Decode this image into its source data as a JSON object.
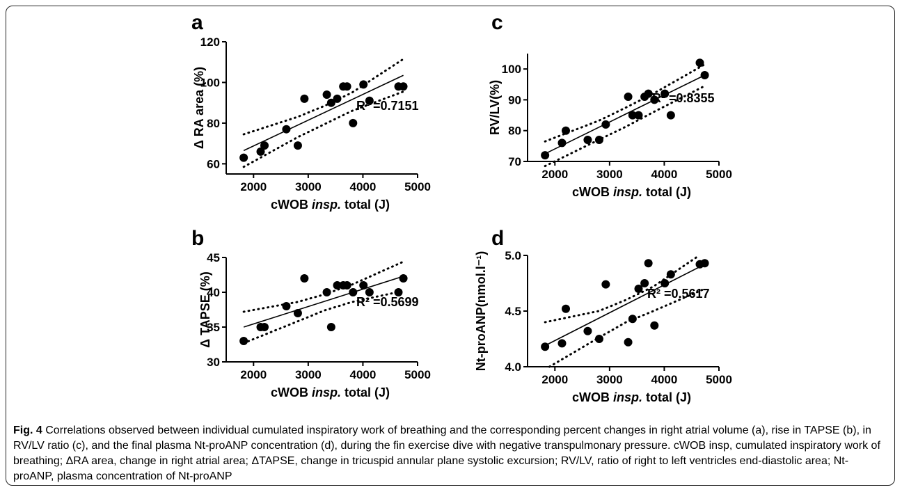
{
  "chart_data": [
    {
      "panel": "a",
      "type": "scatter",
      "xlabel": "cWOB insp.  total (J)",
      "xlabel_parts": [
        "cWOB ",
        "insp.",
        "  total (J)"
      ],
      "ylabel": "Δ RA area (%)",
      "xlim": [
        1500,
        5000
      ],
      "ylim": [
        55,
        120
      ],
      "xticks": [
        2000,
        3000,
        4000,
        5000
      ],
      "yticks": [
        60,
        80,
        100,
        120
      ],
      "annotation": "R² =0.7151",
      "x": [
        1820,
        2130,
        2200,
        2600,
        2810,
        2930,
        3340,
        3420,
        3530,
        3640,
        3710,
        3820,
        4010,
        4120,
        4650,
        4740
      ],
      "y": [
        63,
        66,
        69,
        77,
        69,
        92,
        94,
        90,
        92,
        98,
        98,
        80,
        99,
        91,
        98,
        98
      ],
      "fit": {
        "x": [
          1820,
          4740
        ],
        "y": [
          66.5,
          103.5
        ]
      },
      "ci_upper": {
        "x": [
          1820,
          2800,
          3300,
          3800,
          4740
        ],
        "y": [
          74.5,
          83.0,
          88.5,
          95.0,
          111.5
        ]
      },
      "ci_lower": {
        "x": [
          1820,
          2800,
          3300,
          3800,
          4740
        ],
        "y": [
          58.5,
          73.0,
          79.5,
          86.0,
          95.5
        ]
      }
    },
    {
      "panel": "b",
      "type": "scatter",
      "xlabel": "cWOB insp. total (J)",
      "xlabel_parts": [
        "cWOB ",
        "insp.",
        " total (J)"
      ],
      "ylabel": "Δ TAPSE (%)",
      "xlim": [
        1500,
        5000
      ],
      "ylim": [
        30,
        45
      ],
      "xticks": [
        2000,
        3000,
        4000,
        5000
      ],
      "yticks": [
        30,
        35,
        40,
        45
      ],
      "annotation": "R² =0.5699",
      "x": [
        1820,
        2130,
        2200,
        2600,
        2810,
        2930,
        3340,
        3420,
        3530,
        3640,
        3710,
        3820,
        4010,
        4120,
        4650,
        4740
      ],
      "y": [
        33,
        35,
        35,
        38,
        37,
        42,
        40,
        35,
        41,
        41,
        41,
        40,
        41,
        40,
        40,
        42
      ],
      "fit": {
        "x": [
          1820,
          4740
        ],
        "y": [
          35.0,
          42.3
        ]
      },
      "ci_upper": {
        "x": [
          1820,
          2800,
          3300,
          3800,
          4740
        ],
        "y": [
          37.2,
          38.6,
          39.7,
          41.1,
          44.4
        ]
      },
      "ci_lower": {
        "x": [
          1820,
          2800,
          3300,
          3800,
          4740
        ],
        "y": [
          32.7,
          35.8,
          37.4,
          38.6,
          40.2
        ]
      }
    },
    {
      "panel": "c",
      "type": "scatter",
      "xlabel": "cWOB insp. total (J)",
      "xlabel_parts": [
        "cWOB ",
        "insp.",
        " total (J)"
      ],
      "ylabel": "RV/LV(%)",
      "xlim": [
        1500,
        5000
      ],
      "ylim": [
        70,
        105
      ],
      "xticks": [
        2000,
        3000,
        4000,
        5000
      ],
      "yticks": [
        70,
        80,
        90,
        100
      ],
      "annotation": "R² =0.8355",
      "x": [
        1820,
        2130,
        2200,
        2600,
        2810,
        2930,
        3340,
        3420,
        3530,
        3640,
        3710,
        3820,
        4010,
        4120,
        4650,
        4740
      ],
      "y": [
        72,
        76,
        80,
        77,
        77,
        82,
        91,
        85,
        85,
        91,
        92,
        90,
        92,
        85,
        102,
        98
      ],
      "fit": {
        "x": [
          1820,
          4740
        ],
        "y": [
          72.5,
          98.0
        ]
      },
      "ci_upper": {
        "x": [
          1820,
          2800,
          3300,
          3800,
          4740
        ],
        "y": [
          76.5,
          83.2,
          87.5,
          92.0,
          101.5
        ]
      },
      "ci_lower": {
        "x": [
          1820,
          2800,
          3300,
          3800,
          4740
        ],
        "y": [
          68.5,
          77.0,
          81.3,
          86.0,
          94.5
        ]
      }
    },
    {
      "panel": "d",
      "type": "scatter",
      "xlabel": "cWOB insp. total (J)",
      "xlabel_parts": [
        "cWOB ",
        "insp.",
        " total (J)"
      ],
      "ylabel": "Nt-proANP(nmol.l⁻¹)",
      "xlim": [
        1500,
        5000
      ],
      "ylim": [
        4.0,
        5.0
      ],
      "xticks": [
        2000,
        3000,
        4000,
        5000
      ],
      "yticks": [
        "4.0",
        "4.5",
        "5.0"
      ],
      "annotation": "R² =0.5617",
      "x": [
        1820,
        2130,
        2200,
        2600,
        2810,
        2930,
        3340,
        3420,
        3530,
        3640,
        3710,
        3820,
        4010,
        4120,
        4650,
        4740
      ],
      "y": [
        4.18,
        4.21,
        4.52,
        4.32,
        4.25,
        4.74,
        4.22,
        4.43,
        4.7,
        4.75,
        4.93,
        4.37,
        4.75,
        4.83,
        4.92,
        4.93
      ],
      "fit": {
        "x": [
          1820,
          4740
        ],
        "y": [
          4.19,
          4.92
        ]
      },
      "ci_upper": {
        "x": [
          1820,
          2800,
          3300,
          3800,
          4640
        ],
        "y": [
          4.4,
          4.5,
          4.6,
          4.72,
          5.0
        ]
      },
      "ci_lower": {
        "x": [
          1900,
          2800,
          3300,
          3800,
          4740
        ],
        "y": [
          4.0,
          4.26,
          4.4,
          4.5,
          4.7
        ]
      }
    }
  ],
  "caption": {
    "label": "Fig. 4",
    "text": "Correlations observed between individual cumulated inspiratory work of breathing and the corresponding percent changes in right atrial volume (a), rise in TAPSE (b), in RV/LV ratio (c), and the final plasma Nt-proANP concentration (d), during the fin exercise dive with negative transpulmonary pressure. cWOB insp, cumulated inspiratory work of breathing; ΔRA area, change in right atrial area; ΔTAPSE, change in tricuspid annular plane systolic excursion; RV/LV, ratio of right to left ventricles end-diastolic area; Nt-proANP, plasma concentration of Nt-proANP"
  }
}
